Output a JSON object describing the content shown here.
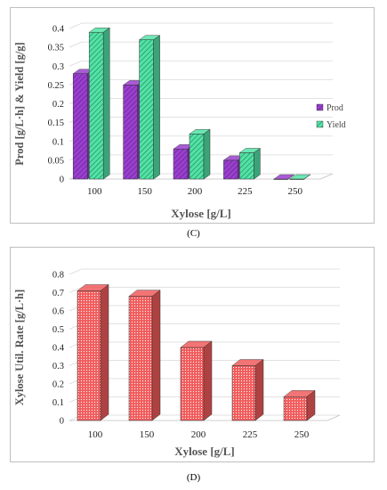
{
  "panels": {
    "C": {
      "caption": "(C)"
    },
    "D": {
      "caption": "(D)"
    }
  },
  "colors": {
    "prod": "#9b3fcf",
    "yield": "#52e3a6",
    "util": "#f25c5c",
    "grid": "#d9d9d9"
  },
  "chart_data": [
    {
      "type": "bar",
      "panel": "C",
      "categories": [
        "100",
        "150",
        "200",
        "225",
        "250"
      ],
      "series": [
        {
          "name": "Prod",
          "values": [
            0.28,
            0.25,
            0.08,
            0.05,
            0.0
          ]
        },
        {
          "name": "Yield",
          "values": [
            0.39,
            0.37,
            0.12,
            0.07,
            0.0
          ]
        }
      ],
      "yticks": [
        "0",
        "0.05",
        "0.1",
        "0.15",
        "0.2",
        "0.25",
        "0.3",
        "0.35",
        "0.4"
      ],
      "title": "",
      "xlabel": "Xylose [g/L]",
      "ylabel": "Prod [g/L·h] & Yield [g/g]",
      "ylim": [
        0,
        0.4
      ],
      "grid": true,
      "legend": "right",
      "style": "3d-hatched"
    },
    {
      "type": "bar",
      "panel": "D",
      "categories": [
        "100",
        "150",
        "200",
        "225",
        "250"
      ],
      "series": [
        {
          "values": [
            0.71,
            0.68,
            0.4,
            0.3,
            0.13
          ]
        }
      ],
      "yticks": [
        "0",
        "0.1",
        "0.2",
        "0.3",
        "0.4",
        "0.5",
        "0.6",
        "0.7",
        "0.8"
      ],
      "title": "",
      "xlabel": "Xylose [g/L]",
      "ylabel": "Xylose Util. Rate [g/L·h]",
      "ylim": [
        0,
        0.8
      ],
      "grid": true,
      "style": "3d-dotted"
    }
  ]
}
